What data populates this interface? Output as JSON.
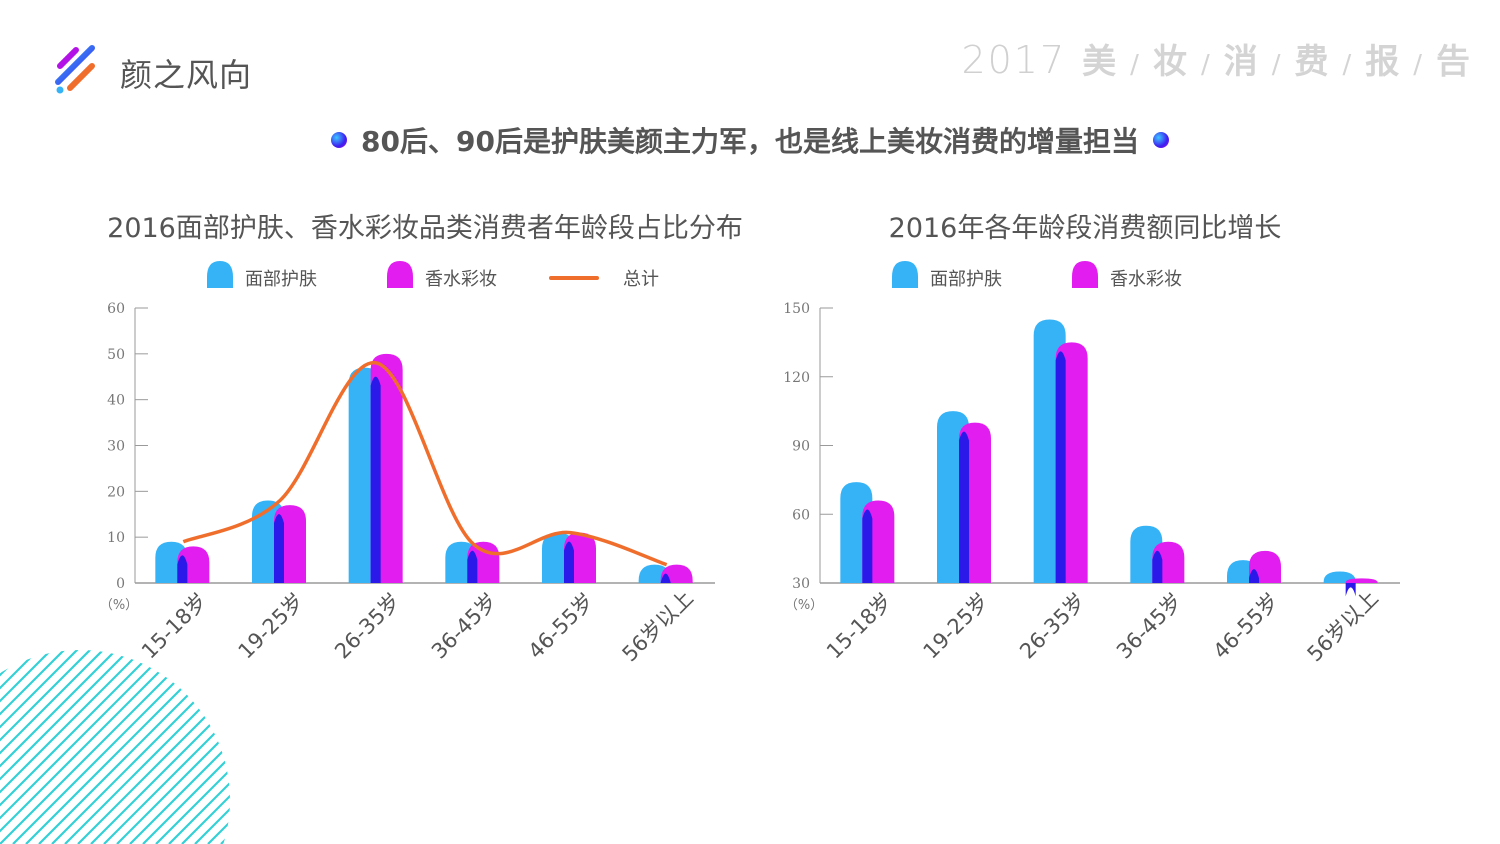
{
  "brand": {
    "name": "颜之风向"
  },
  "report": {
    "year": "2017",
    "chars": [
      "美",
      "妆",
      "消",
      "费",
      "报",
      "告"
    ]
  },
  "headline": {
    "text": "80后、90后是护肤美颜主力军，也是线上美妆消费的增量担当"
  },
  "colors": {
    "skin": "#35b3f6",
    "skin_dark": "#2a19e8",
    "makeup": "#e21df0",
    "total": "#f06e2c",
    "axis": "#9a9a9a"
  },
  "chart_data": [
    {
      "type": "bar",
      "title": "2016面部护肤、香水彩妆品类消费者年龄段占比分布",
      "categories": [
        "15-18岁",
        "19-25岁",
        "26-35岁",
        "36-45岁",
        "46-55岁",
        "56岁以上"
      ],
      "series": [
        {
          "name": "面部护肤",
          "values": [
            9,
            18,
            47,
            9,
            11,
            4
          ]
        },
        {
          "name": "香水彩妆",
          "values": [
            8,
            17,
            50,
            9,
            11,
            4
          ]
        },
        {
          "name": "总计",
          "type": "line",
          "values": [
            9,
            18,
            48,
            8.5,
            11,
            4
          ]
        }
      ],
      "ylim": [
        0,
        60
      ],
      "yticks": [
        "0",
        "10",
        "20",
        "30",
        "40",
        "50",
        "60"
      ],
      "unit": "（%）",
      "legend": "top"
    },
    {
      "type": "bar",
      "title": "2016年各年龄段消费额同比增长",
      "categories": [
        "15-18岁",
        "19-25岁",
        "26-35岁",
        "36-45岁",
        "46-55岁",
        "56岁以上"
      ],
      "series": [
        {
          "name": "面部护肤",
          "values": [
            74,
            105,
            145,
            55,
            40,
            35
          ]
        },
        {
          "name": "香水彩妆",
          "values": [
            66,
            100,
            135,
            48,
            44,
            32
          ]
        }
      ],
      "ylim": [
        30,
        150
      ],
      "yticks": [
        "30",
        "60",
        "90",
        "120",
        "150"
      ],
      "unit": "（%）",
      "legend": "top"
    }
  ]
}
